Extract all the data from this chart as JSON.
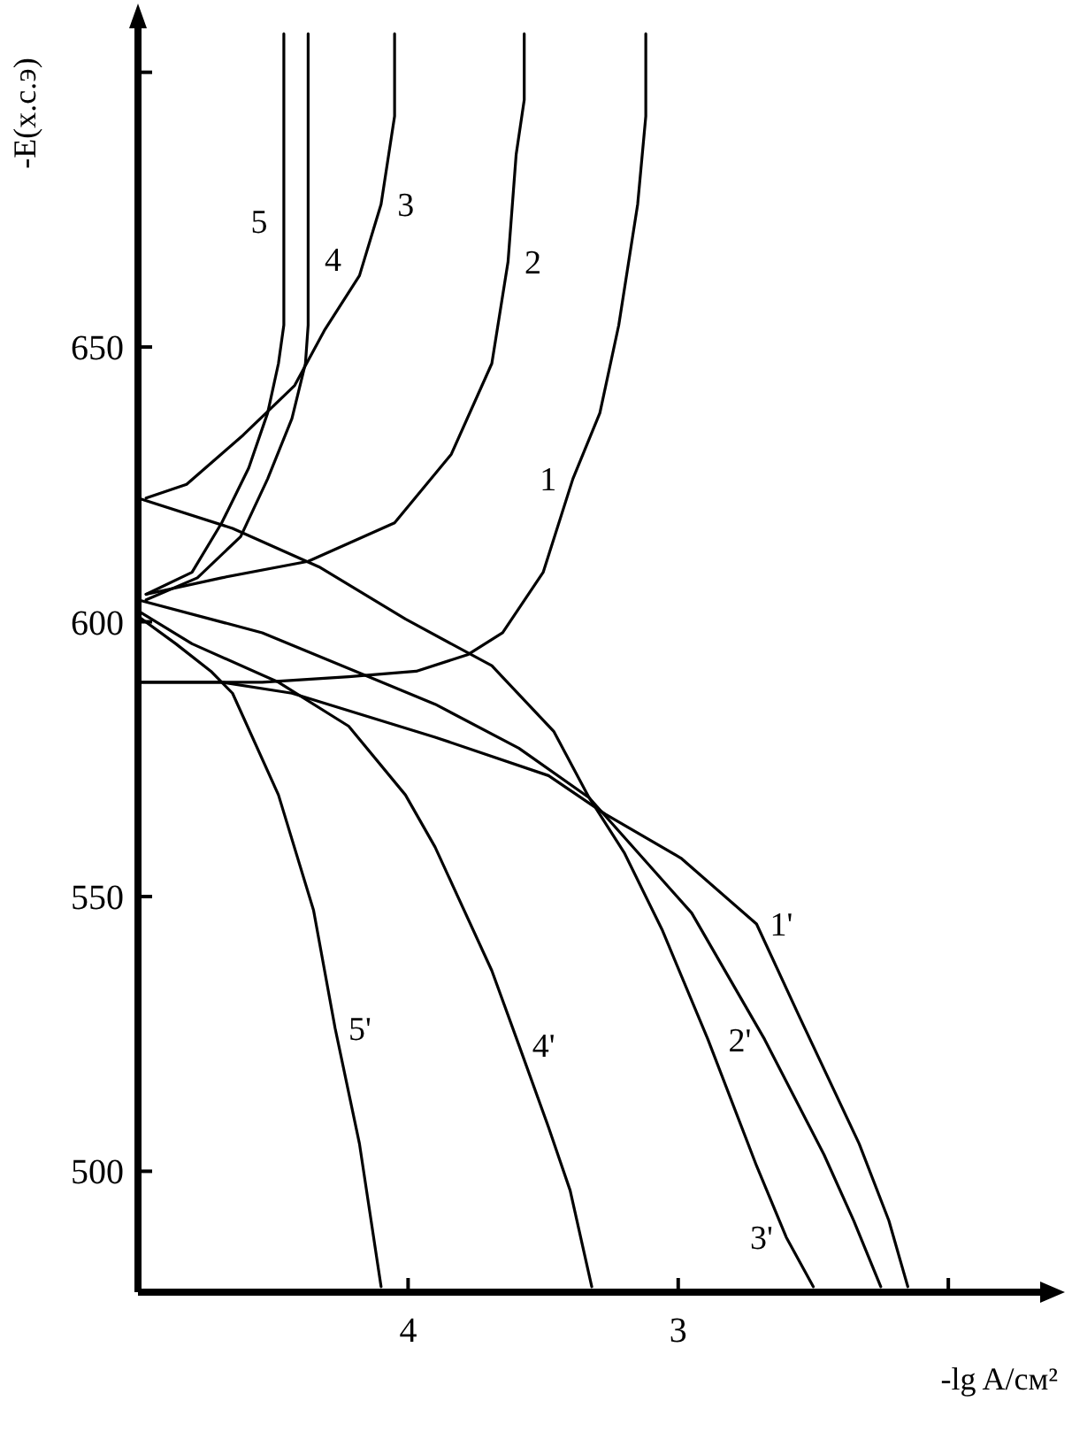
{
  "chart_data": {
    "type": "line",
    "xlabel": "-lg A/см²",
    "ylabel": "-E(х.с.э)",
    "xlim": [
      5,
      1.66
    ],
    "ylim": [
      478,
      708
    ],
    "xticks": [
      4,
      3,
      {
        "value": 2,
        "label": null
      }
    ],
    "yticks": [
      500,
      550,
      600,
      650,
      {
        "value": 700,
        "label": null
      }
    ],
    "grid": false,
    "marker": "none",
    "line_style": "solid",
    "series": [
      {
        "color": "#000000",
        "x": [
          4.97,
          4.8,
          4.69,
          4.59,
          4.52,
          4.48,
          4.46,
          4.46,
          4.46
        ],
        "values": [
          605,
          609,
          618,
          628,
          638,
          647,
          654,
          673,
          707
        ]
      },
      {
        "color": "#000000",
        "x": [
          4.97,
          4.78,
          4.62,
          4.52,
          4.43,
          4.38,
          4.37,
          4.37,
          4.37
        ],
        "values": [
          604,
          608,
          615.5,
          626,
          637,
          647,
          654,
          666,
          707
        ]
      },
      {
        "color": "#000000",
        "x": [
          4.97,
          4.82,
          4.61,
          4.42,
          4.31,
          4.18,
          4.1,
          4.05,
          4.05
        ],
        "values": [
          622.5,
          625,
          634,
          643,
          653,
          663,
          676,
          692,
          707
        ]
      },
      {
        "color": "#000000",
        "x": [
          4.97,
          4.69,
          4.37,
          4.05,
          3.84,
          3.69,
          3.63,
          3.6,
          3.57,
          3.57
        ],
        "values": [
          605,
          608,
          611,
          618,
          630.5,
          647,
          665.5,
          685,
          695,
          707
        ]
      },
      {
        "color": "#000000",
        "x": [
          5.0,
          4.54,
          4.22,
          3.97,
          3.78,
          3.65,
          3.5,
          3.39,
          3.29,
          3.22,
          3.15,
          3.12,
          3.12
        ],
        "values": [
          589,
          589,
          590,
          591,
          594,
          598,
          609,
          626,
          638,
          654,
          676,
          692,
          707
        ]
      },
      {
        "color": "#000000",
        "x": [
          5.0,
          4.69,
          4.43,
          3.9,
          3.48,
          3.27,
          2.99,
          2.71,
          2.55,
          2.33,
          2.22,
          2.15
        ],
        "values": [
          589,
          589,
          587,
          579,
          572,
          565,
          557,
          545,
          528,
          505,
          491,
          479
        ]
      },
      {
        "color": "#000000",
        "x": [
          5.0,
          4.54,
          3.9,
          3.59,
          3.33,
          2.95,
          2.68,
          2.46,
          2.35,
          2.25
        ],
        "values": [
          604,
          598,
          585,
          577,
          568,
          547,
          524,
          503,
          491,
          479
        ]
      },
      {
        "color": "#000000",
        "x": [
          5.0,
          4.65,
          4.33,
          4.01,
          3.69,
          3.46,
          3.33,
          3.2,
          3.06,
          2.89,
          2.71,
          2.6,
          2.5
        ],
        "values": [
          622.5,
          617,
          610,
          600.5,
          592,
          580,
          568,
          558,
          544,
          524,
          501,
          488,
          479
        ]
      },
      {
        "color": "#000000",
        "x": [
          5.0,
          4.8,
          4.48,
          4.22,
          4.01,
          3.9,
          3.69,
          3.59,
          3.48,
          3.4,
          3.32
        ],
        "values": [
          602,
          596,
          589,
          581,
          568.5,
          559,
          536.5,
          523,
          508,
          496.5,
          479
        ]
      },
      {
        "color": "#000000",
        "x": [
          5.0,
          4.86,
          4.73,
          4.65,
          4.48,
          4.35,
          4.27,
          4.18,
          4.1
        ],
        "values": [
          601,
          596,
          591,
          587,
          568.5,
          547.5,
          526,
          505,
          479
        ]
      }
    ],
    "annotations": [
      {
        "text": "5",
        "x": 4.46,
        "y": 673
      },
      {
        "text": "4",
        "x": 4.37,
        "y": 666
      },
      {
        "text": "3",
        "x": 4.1,
        "y": 676
      },
      {
        "text": "2",
        "x": 3.63,
        "y": 665.5
      },
      {
        "text": "1",
        "x": 3.39,
        "y": 626
      },
      {
        "text": "1'",
        "x": 2.71,
        "y": 545
      },
      {
        "text": "2'",
        "x": 2.68,
        "y": 524
      },
      {
        "text": "3'",
        "x": 2.6,
        "y": 488
      },
      {
        "text": "4'",
        "x": 3.59,
        "y": 523
      },
      {
        "text": "5'",
        "x": 4.27,
        "y": 526
      }
    ]
  }
}
